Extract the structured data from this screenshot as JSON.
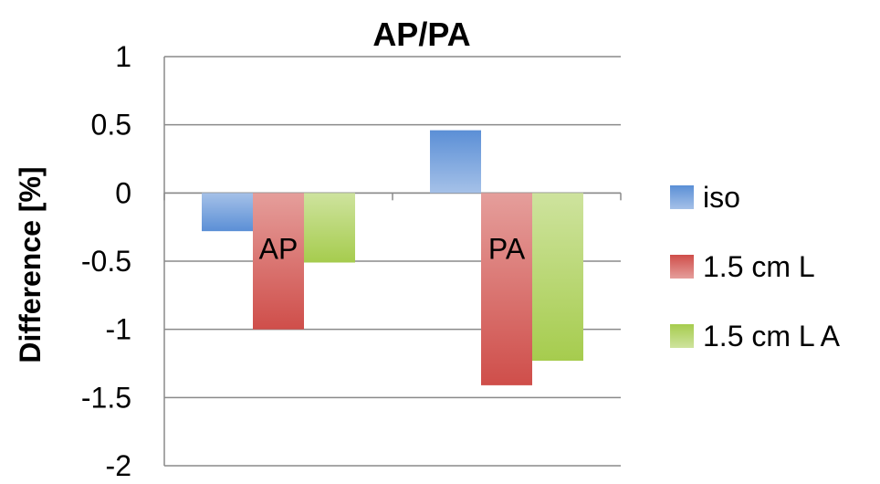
{
  "chart_data": {
    "type": "bar",
    "title": "AP/PA",
    "ylabel": "Difference [%]",
    "xlabel": "",
    "categories": [
      "AP",
      "PA"
    ],
    "ylim": [
      -2,
      1
    ],
    "yticks": [
      1,
      0.5,
      0,
      -0.5,
      -1,
      -1.5,
      -2
    ],
    "ytick_labels": [
      "1",
      "0.5",
      "0",
      "-0.5",
      "-1",
      "-1.5",
      "-2"
    ],
    "grid": true,
    "legend_position": "right",
    "series": [
      {
        "name": "iso",
        "values": [
          -0.28,
          0.46
        ],
        "color": "#5b8fd6"
      },
      {
        "name": "1.5 cm L",
        "values": [
          -1.0,
          -1.41
        ],
        "color": "#cf4e4a"
      },
      {
        "name": "1.5 cm L A",
        "values": [
          -0.51,
          -1.23
        ],
        "color": "#a6cc4e"
      }
    ]
  }
}
